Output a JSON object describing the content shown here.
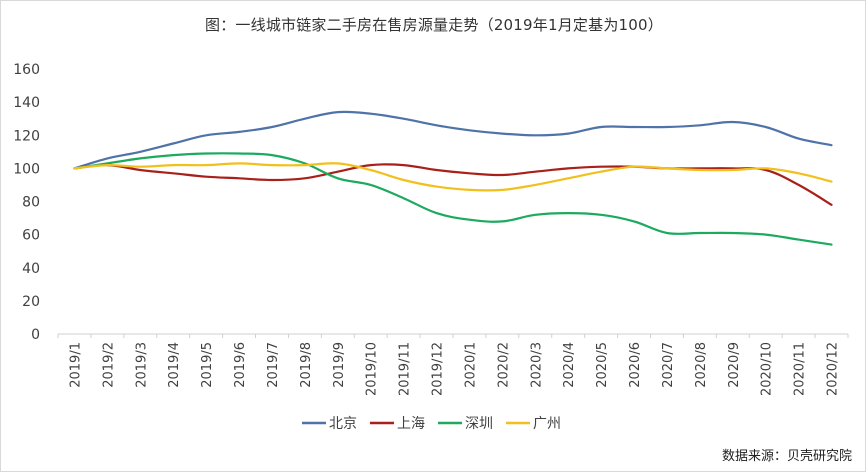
{
  "chart_data": {
    "type": "line",
    "title": "图：一线城市链家二手房在售房源量走势（2019年1月定基为100）",
    "source": "数据来源：贝壳研究院",
    "ylim": [
      0,
      160
    ],
    "yticks": [
      0,
      20,
      40,
      60,
      80,
      100,
      120,
      140,
      160
    ],
    "grid": false,
    "legend_position": "bottom",
    "categories": [
      "2019/1",
      "2019/2",
      "2019/3",
      "2019/4",
      "2019/5",
      "2019/6",
      "2019/7",
      "2019/8",
      "2019/9",
      "2019/10",
      "2019/11",
      "2019/12",
      "2020/1",
      "2020/2",
      "2020/3",
      "2020/4",
      "2020/5",
      "2020/6",
      "2020/7",
      "2020/8",
      "2020/9",
      "2020/10",
      "2020/11",
      "2020/12"
    ],
    "series": [
      {
        "name": "北京",
        "color": "#4f73a8",
        "values": [
          100,
          106,
          110,
          115,
          120,
          122,
          125,
          130,
          134,
          133,
          130,
          126,
          123,
          121,
          120,
          121,
          125,
          125,
          125,
          126,
          128,
          125,
          118,
          114
        ]
      },
      {
        "name": "上海",
        "color": "#a8201a",
        "values": [
          100,
          102,
          99,
          97,
          95,
          94,
          93,
          94,
          98,
          102,
          102,
          99,
          97,
          96,
          98,
          100,
          101,
          101,
          100,
          100,
          100,
          99,
          90,
          78
        ]
      },
      {
        "name": "深圳",
        "color": "#1daa5e",
        "values": [
          100,
          103,
          106,
          108,
          109,
          109,
          108,
          103,
          94,
          90,
          82,
          73,
          69,
          68,
          72,
          73,
          72,
          68,
          61,
          61,
          61,
          60,
          57,
          54
        ]
      },
      {
        "name": "广州",
        "color": "#f2c01d",
        "values": [
          100,
          102,
          101,
          102,
          102,
          103,
          102,
          102,
          103,
          99,
          93,
          89,
          87,
          87,
          90,
          94,
          98,
          101,
          100,
          99,
          99,
          100,
          97,
          92
        ]
      }
    ]
  }
}
